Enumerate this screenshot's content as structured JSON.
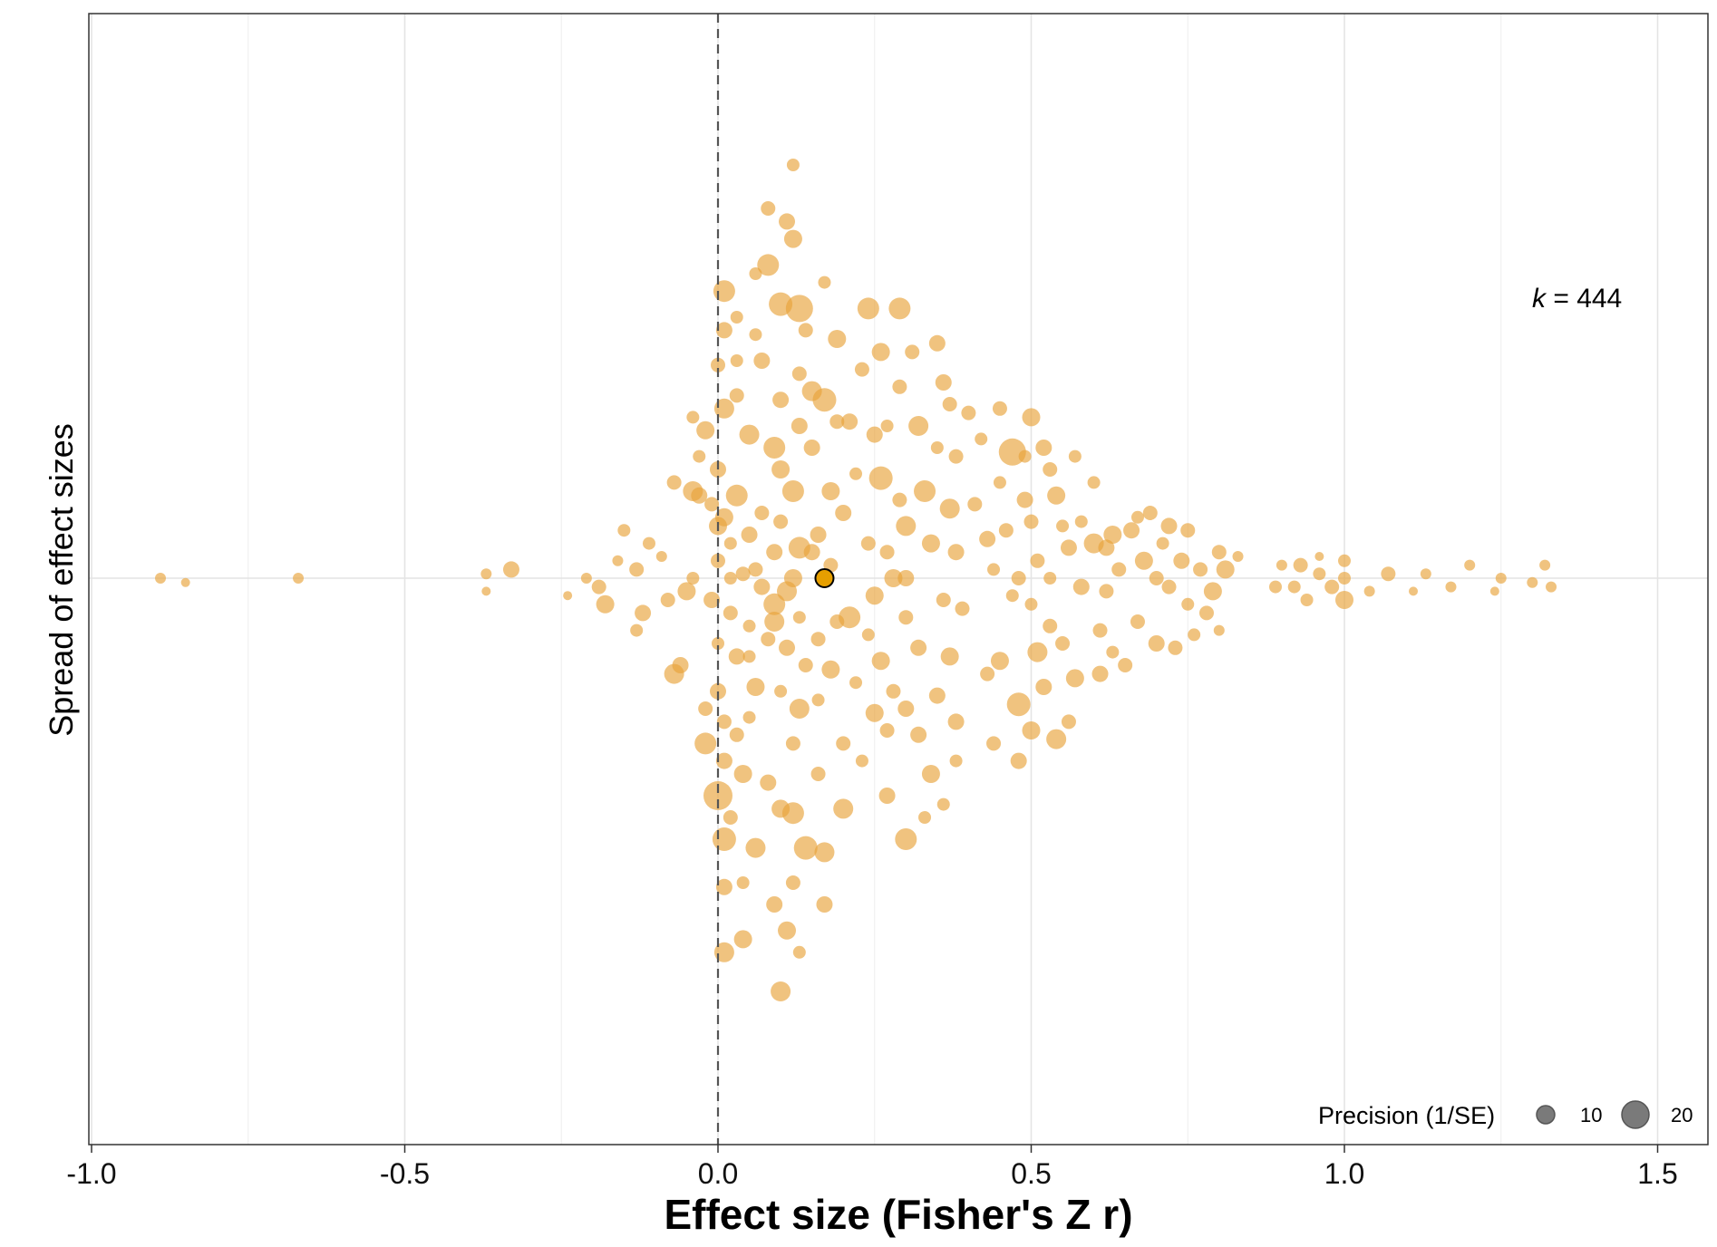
{
  "chart_data": {
    "type": "scatter",
    "subtype": "orchard / beeswarm",
    "xlabel": "Effect size (Fisher's Z r)",
    "ylabel": "Spread of effect sizes",
    "xlim": [
      -1.0,
      1.5
    ],
    "xticks": [
      -1.0,
      -0.5,
      0.0,
      0.5,
      1.0,
      1.5
    ],
    "xtick_labels": [
      "-1.0",
      "-0.5",
      "0.0",
      "0.5",
      "1.0",
      "1.5"
    ],
    "reference_line_x": 0.0,
    "grid": true,
    "annotation": {
      "k_symbol": "k",
      "k_text": " = 444"
    },
    "point_color": "#E8A33A",
    "estimate_color": "#E69F00",
    "legend": {
      "title": "Precision (1/SE)",
      "entries": [
        {
          "label": "10",
          "precision": 10
        },
        {
          "label": "20",
          "precision": 20
        }
      ],
      "placement": "bottom-right"
    },
    "pooled_estimate": 0.17,
    "points": [
      [
        -0.89,
        0.0,
        6
      ],
      [
        -0.85,
        -0.01,
        5
      ],
      [
        -0.67,
        0.0,
        6
      ],
      [
        -0.37,
        0.01,
        6
      ],
      [
        -0.37,
        -0.03,
        5
      ],
      [
        -0.33,
        0.02,
        9
      ],
      [
        -0.24,
        -0.04,
        5
      ],
      [
        -0.21,
        0.0,
        6
      ],
      [
        -0.19,
        -0.02,
        8
      ],
      [
        -0.18,
        -0.06,
        10
      ],
      [
        -0.16,
        0.04,
        6
      ],
      [
        -0.15,
        0.11,
        7
      ],
      [
        -0.13,
        0.02,
        8
      ],
      [
        -0.13,
        -0.12,
        7
      ],
      [
        -0.12,
        -0.08,
        9
      ],
      [
        -0.11,
        0.08,
        7
      ],
      [
        -0.09,
        0.05,
        6
      ],
      [
        -0.08,
        -0.05,
        8
      ],
      [
        -0.07,
        -0.22,
        11
      ],
      [
        -0.07,
        0.22,
        8
      ],
      [
        -0.06,
        -0.2,
        9
      ],
      [
        -0.05,
        -0.03,
        10
      ],
      [
        -0.04,
        0.0,
        7
      ],
      [
        -0.04,
        0.2,
        11
      ],
      [
        -0.03,
        0.28,
        7
      ],
      [
        -0.02,
        -0.3,
        8
      ],
      [
        -0.02,
        -0.38,
        12
      ],
      [
        -0.03,
        0.19,
        9
      ],
      [
        -0.04,
        0.37,
        7
      ],
      [
        -0.01,
        -0.05,
        9
      ],
      [
        -0.01,
        0.17,
        8
      ],
      [
        -0.02,
        0.34,
        10
      ],
      [
        0.0,
        -0.5,
        16
      ],
      [
        0.0,
        -0.26,
        9
      ],
      [
        0.0,
        -0.15,
        7
      ],
      [
        0.0,
        0.04,
        8
      ],
      [
        0.0,
        0.12,
        10
      ],
      [
        0.0,
        0.25,
        9
      ],
      [
        0.01,
        0.66,
        12
      ],
      [
        0.01,
        0.57,
        9
      ],
      [
        0.0,
        0.49,
        8
      ],
      [
        0.01,
        0.39,
        11
      ],
      [
        0.01,
        0.14,
        10
      ],
      [
        0.01,
        -0.33,
        8
      ],
      [
        0.01,
        -0.42,
        9
      ],
      [
        0.01,
        -0.6,
        13
      ],
      [
        0.01,
        -0.71,
        9
      ],
      [
        0.01,
        -0.86,
        11
      ],
      [
        0.02,
        -0.08,
        8
      ],
      [
        0.02,
        0.0,
        7
      ],
      [
        0.02,
        0.08,
        7
      ],
      [
        0.03,
        0.5,
        7
      ],
      [
        0.03,
        0.42,
        8
      ],
      [
        0.03,
        0.19,
        12
      ],
      [
        0.03,
        -0.18,
        9
      ],
      [
        0.03,
        -0.36,
        8
      ],
      [
        0.04,
        -0.7,
        7
      ],
      [
        0.04,
        -0.83,
        10
      ],
      [
        0.04,
        -0.45,
        10
      ],
      [
        0.05,
        0.33,
        11
      ],
      [
        0.05,
        0.1,
        9
      ],
      [
        0.05,
        -0.11,
        7
      ],
      [
        0.05,
        -0.32,
        7
      ],
      [
        0.06,
        0.56,
        7
      ],
      [
        0.06,
        0.02,
        8
      ],
      [
        0.06,
        -0.25,
        10
      ],
      [
        0.06,
        -0.62,
        11
      ],
      [
        0.07,
        0.5,
        9
      ],
      [
        0.08,
        0.72,
        12
      ],
      [
        0.08,
        -0.14,
        8
      ],
      [
        0.08,
        -0.47,
        9
      ],
      [
        0.09,
        0.3,
        12
      ],
      [
        0.09,
        0.06,
        9
      ],
      [
        0.09,
        -0.06,
        12
      ],
      [
        0.1,
        -0.26,
        7
      ],
      [
        0.1,
        -0.53,
        10
      ],
      [
        0.11,
        0.82,
        9
      ],
      [
        0.1,
        0.63,
        13
      ],
      [
        0.1,
        0.41,
        9
      ],
      [
        0.1,
        0.25,
        10
      ],
      [
        0.11,
        -0.03,
        11
      ],
      [
        0.11,
        -0.16,
        9
      ],
      [
        0.12,
        -0.38,
        8
      ],
      [
        0.12,
        -0.54,
        12
      ],
      [
        0.11,
        -0.81,
        10
      ],
      [
        0.1,
        -0.95,
        11
      ],
      [
        0.12,
        0.95,
        7
      ],
      [
        0.12,
        0.78,
        10
      ],
      [
        0.13,
        0.62,
        15
      ],
      [
        0.13,
        0.47,
        8
      ],
      [
        0.13,
        0.35,
        9
      ],
      [
        0.12,
        0.2,
        12
      ],
      [
        0.13,
        0.07,
        12
      ],
      [
        0.13,
        -0.09,
        7
      ],
      [
        0.13,
        -0.3,
        11
      ],
      [
        0.14,
        -0.62,
        13
      ],
      [
        0.13,
        -0.86,
        7
      ],
      [
        0.14,
        0.57,
        8
      ],
      [
        0.15,
        0.43,
        11
      ],
      [
        0.15,
        0.3,
        9
      ],
      [
        0.15,
        0.06,
        9
      ],
      [
        0.16,
        -0.14,
        8
      ],
      [
        0.16,
        -0.28,
        7
      ],
      [
        0.16,
        -0.45,
        8
      ],
      [
        0.17,
        -0.63,
        11
      ],
      [
        0.17,
        -0.75,
        9
      ],
      [
        0.17,
        0.68,
        7
      ],
      [
        0.17,
        0.41,
        13
      ],
      [
        0.18,
        0.2,
        10
      ],
      [
        0.18,
        0.03,
        8
      ],
      [
        0.18,
        -0.21,
        10
      ],
      [
        0.19,
        0.55,
        10
      ],
      [
        0.19,
        0.36,
        8
      ],
      [
        0.2,
        -0.38,
        8
      ],
      [
        0.2,
        -0.53,
        11
      ],
      [
        0.2,
        0.15,
        9
      ],
      [
        0.21,
        0.36,
        9
      ],
      [
        0.21,
        -0.09,
        12
      ],
      [
        0.22,
        0.24,
        7
      ],
      [
        0.22,
        -0.24,
        7
      ],
      [
        0.23,
        0.48,
        8
      ],
      [
        0.23,
        -0.42,
        7
      ],
      [
        0.24,
        0.62,
        12
      ],
      [
        0.24,
        0.08,
        8
      ],
      [
        0.24,
        -0.13,
        7
      ],
      [
        0.25,
        0.33,
        9
      ],
      [
        0.25,
        -0.04,
        10
      ],
      [
        0.25,
        -0.31,
        10
      ],
      [
        0.26,
        0.52,
        10
      ],
      [
        0.26,
        0.23,
        13
      ],
      [
        0.26,
        -0.19,
        10
      ],
      [
        0.27,
        -0.35,
        8
      ],
      [
        0.27,
        -0.5,
        9
      ],
      [
        0.27,
        0.06,
        8
      ],
      [
        0.27,
        0.35,
        7
      ],
      [
        0.28,
        -0.26,
        8
      ],
      [
        0.28,
        0.0,
        10
      ],
      [
        0.29,
        0.62,
        12
      ],
      [
        0.29,
        0.44,
        8
      ],
      [
        0.29,
        0.18,
        8
      ],
      [
        0.3,
        -0.6,
        12
      ],
      [
        0.3,
        -0.3,
        9
      ],
      [
        0.3,
        -0.09,
        8
      ],
      [
        0.3,
        0.0,
        9
      ],
      [
        0.3,
        0.12,
        11
      ],
      [
        0.31,
        0.52,
        8
      ],
      [
        0.32,
        0.35,
        11
      ],
      [
        0.32,
        -0.36,
        9
      ],
      [
        0.32,
        -0.16,
        9
      ],
      [
        0.33,
        0.2,
        12
      ],
      [
        0.33,
        -0.55,
        7
      ],
      [
        0.34,
        -0.45,
        10
      ],
      [
        0.34,
        0.08,
        10
      ],
      [
        0.35,
        0.54,
        9
      ],
      [
        0.35,
        0.3,
        7
      ],
      [
        0.35,
        -0.27,
        9
      ],
      [
        0.36,
        0.45,
        9
      ],
      [
        0.36,
        -0.05,
        8
      ],
      [
        0.36,
        -0.52,
        7
      ],
      [
        0.37,
        0.4,
        8
      ],
      [
        0.37,
        0.16,
        11
      ],
      [
        0.37,
        -0.18,
        10
      ],
      [
        0.38,
        0.28,
        8
      ],
      [
        0.38,
        -0.33,
        9
      ],
      [
        0.38,
        -0.42,
        7
      ],
      [
        0.38,
        0.06,
        9
      ],
      [
        0.39,
        -0.07,
        8
      ],
      [
        0.4,
        0.38,
        8
      ],
      [
        0.41,
        0.17,
        8
      ],
      [
        0.42,
        0.32,
        7
      ],
      [
        0.43,
        -0.22,
        8
      ],
      [
        0.43,
        0.09,
        9
      ],
      [
        0.44,
        0.02,
        7
      ],
      [
        0.44,
        -0.38,
        8
      ],
      [
        0.45,
        0.39,
        8
      ],
      [
        0.45,
        0.22,
        7
      ],
      [
        0.45,
        -0.19,
        10
      ],
      [
        0.46,
        0.11,
        8
      ],
      [
        0.47,
        0.29,
        15
      ],
      [
        0.47,
        -0.04,
        7
      ],
      [
        0.48,
        -0.29,
        13
      ],
      [
        0.48,
        -0.42,
        9
      ],
      [
        0.48,
        0.0,
        8
      ],
      [
        0.49,
        0.28,
        7
      ],
      [
        0.49,
        0.18,
        9
      ],
      [
        0.5,
        -0.35,
        10
      ],
      [
        0.5,
        -0.06,
        7
      ],
      [
        0.5,
        0.13,
        8
      ],
      [
        0.5,
        0.37,
        10
      ],
      [
        0.51,
        -0.17,
        11
      ],
      [
        0.51,
        0.04,
        8
      ],
      [
        0.52,
        -0.25,
        9
      ],
      [
        0.52,
        0.3,
        9
      ],
      [
        0.53,
        0.25,
        8
      ],
      [
        0.53,
        -0.11,
        8
      ],
      [
        0.53,
        0.0,
        7
      ],
      [
        0.54,
        -0.37,
        11
      ],
      [
        0.54,
        0.19,
        10
      ],
      [
        0.55,
        0.12,
        7
      ],
      [
        0.55,
        -0.15,
        8
      ],
      [
        0.56,
        0.07,
        9
      ],
      [
        0.56,
        -0.33,
        8
      ],
      [
        0.57,
        0.28,
        7
      ],
      [
        0.57,
        -0.23,
        10
      ],
      [
        0.58,
        -0.02,
        9
      ],
      [
        0.58,
        0.13,
        7
      ],
      [
        0.6,
        0.22,
        7
      ],
      [
        0.6,
        0.08,
        11
      ],
      [
        0.61,
        -0.12,
        8
      ],
      [
        0.61,
        -0.22,
        9
      ],
      [
        0.62,
        -0.03,
        8
      ],
      [
        0.62,
        0.07,
        9
      ],
      [
        0.63,
        0.1,
        10
      ],
      [
        0.63,
        -0.17,
        7
      ],
      [
        0.64,
        0.02,
        8
      ],
      [
        0.65,
        -0.2,
        8
      ],
      [
        0.66,
        0.11,
        9
      ],
      [
        0.67,
        0.14,
        7
      ],
      [
        0.67,
        -0.1,
        8
      ],
      [
        0.68,
        0.04,
        10
      ],
      [
        0.69,
        0.15,
        8
      ],
      [
        0.7,
        0.0,
        8
      ],
      [
        0.7,
        -0.15,
        9
      ],
      [
        0.71,
        0.08,
        7
      ],
      [
        0.72,
        -0.02,
        8
      ],
      [
        0.72,
        0.12,
        9
      ],
      [
        0.73,
        -0.16,
        8
      ],
      [
        0.74,
        0.04,
        9
      ],
      [
        0.75,
        0.11,
        8
      ],
      [
        0.75,
        -0.06,
        7
      ],
      [
        0.76,
        -0.13,
        7
      ],
      [
        0.77,
        0.02,
        8
      ],
      [
        0.78,
        -0.08,
        8
      ],
      [
        0.79,
        -0.03,
        10
      ],
      [
        0.8,
        0.06,
        8
      ],
      [
        0.8,
        -0.12,
        6
      ],
      [
        0.81,
        0.02,
        10
      ],
      [
        0.83,
        0.05,
        6
      ],
      [
        0.89,
        -0.02,
        7
      ],
      [
        0.9,
        0.03,
        6
      ],
      [
        0.92,
        -0.02,
        7
      ],
      [
        0.93,
        0.03,
        8
      ],
      [
        0.94,
        -0.05,
        7
      ],
      [
        0.96,
        0.01,
        7
      ],
      [
        0.96,
        0.05,
        5
      ],
      [
        0.98,
        -0.02,
        8
      ],
      [
        1.0,
        0.04,
        7
      ],
      [
        1.0,
        -0.05,
        10
      ],
      [
        1.0,
        0.0,
        7
      ],
      [
        1.04,
        -0.03,
        6
      ],
      [
        1.07,
        0.01,
        8
      ],
      [
        1.11,
        -0.03,
        5
      ],
      [
        1.13,
        0.01,
        6
      ],
      [
        1.17,
        -0.02,
        6
      ],
      [
        1.2,
        0.03,
        6
      ],
      [
        1.24,
        -0.03,
        5
      ],
      [
        1.25,
        0.0,
        6
      ],
      [
        1.3,
        -0.01,
        6
      ],
      [
        1.32,
        0.03,
        6
      ],
      [
        1.33,
        -0.02,
        6
      ],
      [
        0.07,
        -0.02,
        9
      ],
      [
        0.09,
        -0.1,
        11
      ],
      [
        0.12,
        0.0,
        10
      ],
      [
        0.14,
        -0.2,
        8
      ],
      [
        0.05,
        -0.18,
        7
      ],
      [
        0.07,
        0.15,
        8
      ],
      [
        0.16,
        0.1,
        9
      ],
      [
        0.19,
        -0.1,
        8
      ],
      [
        0.1,
        0.13,
        8
      ],
      [
        0.04,
        0.01,
        8
      ],
      [
        0.03,
        0.6,
        7
      ],
      [
        0.02,
        -0.55,
        8
      ],
      [
        0.06,
        0.7,
        7
      ],
      [
        0.08,
        0.85,
        8
      ],
      [
        0.09,
        -0.75,
        9
      ],
      [
        0.12,
        -0.7,
        8
      ]
    ]
  }
}
